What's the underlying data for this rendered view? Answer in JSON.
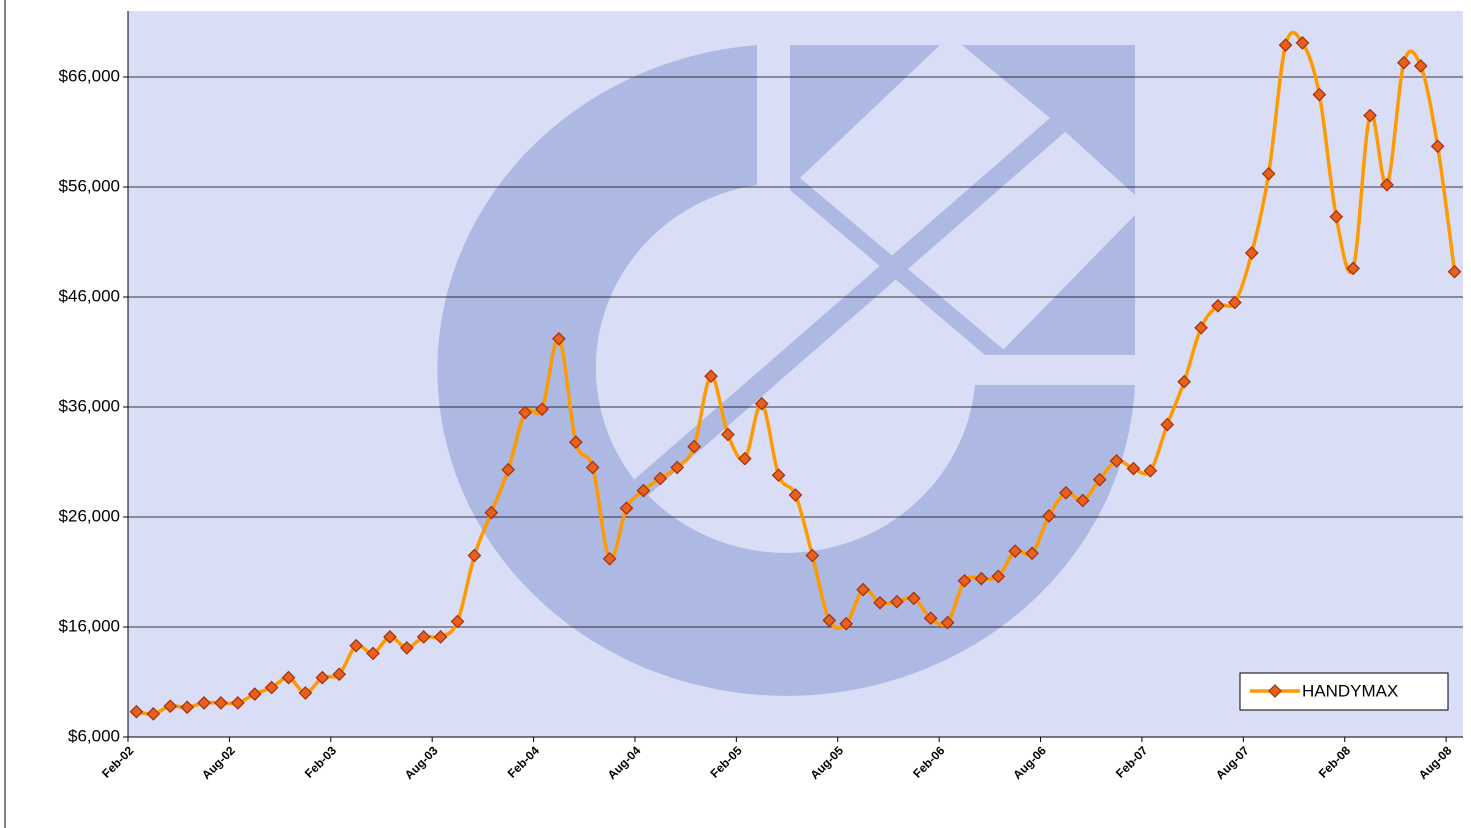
{
  "chart_data": {
    "type": "line",
    "categories": [
      "Feb-02",
      null,
      null,
      null,
      null,
      null,
      "Aug-02",
      null,
      null,
      null,
      null,
      null,
      "Feb-03",
      null,
      null,
      null,
      null,
      null,
      "Aug-03",
      null,
      null,
      null,
      null,
      null,
      "Feb-04",
      null,
      null,
      null,
      null,
      null,
      "Aug-04",
      null,
      null,
      null,
      null,
      null,
      "Feb-05",
      null,
      null,
      null,
      null,
      null,
      "Aug-05",
      null,
      null,
      null,
      null,
      null,
      "Feb-06",
      null,
      null,
      null,
      null,
      null,
      "Aug-06",
      null,
      null,
      null,
      null,
      null,
      "Feb-07",
      null,
      null,
      null,
      null,
      null,
      "Aug-07",
      null,
      null,
      null,
      null,
      null,
      "Feb-08",
      null,
      null,
      null,
      null,
      null,
      "Aug-08"
    ],
    "series": [
      {
        "name": "HANDYMAX",
        "color": "#ff9900",
        "marker_color": "#e8601c",
        "values": [
          8300,
          8100,
          8800,
          8700,
          9100,
          9100,
          9100,
          9900,
          10500,
          11400,
          10000,
          11400,
          11700,
          14300,
          13600,
          15100,
          14100,
          15100,
          15100,
          16500,
          22500,
          26400,
          30300,
          35500,
          35800,
          42200,
          32800,
          30500,
          22200,
          26800,
          28400,
          29500,
          30500,
          32400,
          38800,
          33500,
          31300,
          36300,
          29800,
          28000,
          22500,
          16600,
          16300,
          19400,
          18200,
          18300,
          18600,
          16800,
          16400,
          20200,
          20400,
          20600,
          22900,
          22700,
          26100,
          28200,
          27500,
          29400,
          31100,
          30400,
          30200,
          34400,
          38300,
          43200,
          45200,
          45500,
          50000,
          57200,
          68900,
          69100,
          64400,
          53300,
          48600,
          62500,
          56200,
          67300,
          67000,
          59700,
          48300
        ]
      }
    ],
    "ylim": [
      6000,
      72000
    ],
    "yticks": [
      {
        "value": 6000,
        "label": "$6,000"
      },
      {
        "value": 16000,
        "label": "$16,000"
      },
      {
        "value": 26000,
        "label": "$26,000"
      },
      {
        "value": 36000,
        "label": "$36,000"
      },
      {
        "value": 46000,
        "label": "$46,000"
      },
      {
        "value": 56000,
        "label": "$56,000"
      },
      {
        "value": 66000,
        "label": "$66,000"
      }
    ],
    "grid": true,
    "legend": "lower right",
    "background": "#d9def6"
  }
}
